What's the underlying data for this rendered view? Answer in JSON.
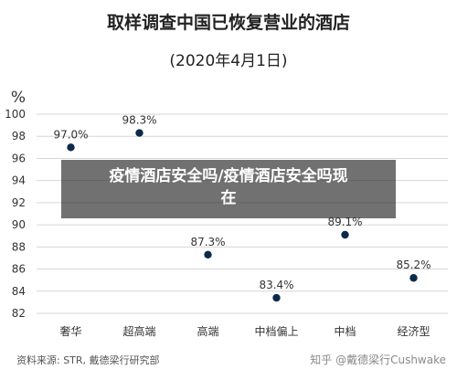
{
  "chart_data": {
    "type": "scatter",
    "title": "取样调查中国已恢复营业的酒店",
    "subtitle": "(2020年4月1日)",
    "ylabel": "%",
    "xlabel": "",
    "ylim": [
      82,
      100
    ],
    "yticks": [
      82,
      84,
      86,
      88,
      90,
      92,
      94,
      96,
      98,
      100
    ],
    "grid": "y",
    "categories": [
      "奢华",
      "超高端",
      "高端",
      "中档偏上",
      "中档",
      "经济型"
    ],
    "values": [
      97.0,
      98.3,
      87.3,
      83.4,
      89.1,
      85.2
    ],
    "data_labels": [
      "97.0%",
      "98.3%",
      "87.3%",
      "83.4%",
      "89.1%",
      "85.2%"
    ],
    "colors": {
      "point": "#0e2a4a",
      "grid": "#d6d6d6",
      "text": "#333333"
    }
  },
  "source": "资料来源: STR, 戴德梁行研究部",
  "watermark": "知乎 @戴德梁行Cushwake",
  "overlay": {
    "line1": "疫情酒店安全吗/疫情酒店安全吗现",
    "line2": "在"
  }
}
